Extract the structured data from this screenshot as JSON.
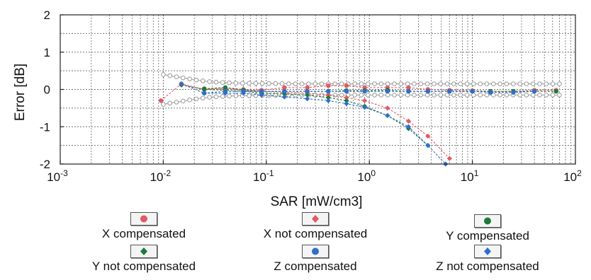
{
  "chart_data": {
    "type": "line",
    "xlabel": "SAR [mW/cm3]",
    "ylabel": "Error [dB]",
    "xscale": "log",
    "xlim": [
      0.001,
      100
    ],
    "ylim": [
      -2,
      2
    ],
    "x_ticks": [
      {
        "base": "10",
        "exp": "-3"
      },
      {
        "base": "10",
        "exp": "-2"
      },
      {
        "base": "10",
        "exp": "-1"
      },
      {
        "base": "10",
        "exp": "0"
      },
      {
        "base": "10",
        "exp": "1"
      },
      {
        "base": "10",
        "exp": "2"
      }
    ],
    "y_ticks": [
      "2",
      "1",
      "0",
      "-1",
      "-2"
    ],
    "grid": true,
    "uncertainty_band": {
      "x": [
        0.01,
        0.012,
        0.015,
        0.02,
        0.03,
        0.05,
        0.1,
        0.2,
        0.5,
        1,
        2,
        5,
        10,
        20,
        50,
        70
      ],
      "upper": [
        0.4,
        0.36,
        0.32,
        0.26,
        0.2,
        0.17,
        0.16,
        0.15,
        0.15,
        0.15,
        0.15,
        0.15,
        0.15,
        0.15,
        0.15,
        0.15
      ],
      "lower": [
        -0.4,
        -0.36,
        -0.32,
        -0.26,
        -0.2,
        -0.17,
        -0.16,
        -0.15,
        -0.15,
        -0.15,
        -0.15,
        -0.15,
        -0.15,
        -0.15,
        -0.15,
        -0.15
      ]
    },
    "series": [
      {
        "name": "X compensated",
        "color": "#e05a64",
        "marker": "circle",
        "x": [
          0.0095,
          0.015,
          0.025,
          0.04,
          0.06,
          0.09,
          0.15,
          0.25,
          0.4,
          0.6,
          0.9,
          1.5,
          2.4,
          3.7,
          6,
          10,
          15,
          25,
          40,
          65
        ],
        "y": [
          -0.3,
          0.15,
          0.0,
          0.05,
          0.0,
          -0.02,
          0.05,
          0.05,
          0.1,
          0.1,
          0.05,
          0.05,
          0.05,
          0.0,
          -0.02,
          -0.03,
          -0.05,
          -0.05,
          -0.02,
          -0.02
        ]
      },
      {
        "name": "X not compensated",
        "color": "#e05a64",
        "marker": "diamond",
        "x": [
          0.015,
          0.025,
          0.04,
          0.06,
          0.09,
          0.15,
          0.25,
          0.4,
          0.6,
          0.9,
          1.5,
          2.4,
          3.7,
          6
        ],
        "y": [
          0.12,
          0.0,
          0.02,
          -0.02,
          -0.05,
          -0.08,
          -0.1,
          -0.15,
          -0.22,
          -0.3,
          -0.5,
          -0.85,
          -1.25,
          -1.85
        ]
      },
      {
        "name": "Y compensated",
        "color": "#1f7a3a",
        "marker": "circle",
        "x": [
          0.025,
          0.04,
          0.06,
          0.09,
          0.15,
          0.25,
          0.4,
          0.6,
          0.9,
          1.5,
          2.4,
          3.7,
          6,
          10,
          15,
          25,
          40,
          65
        ],
        "y": [
          0.02,
          0.05,
          -0.02,
          -0.05,
          -0.05,
          -0.05,
          -0.05,
          -0.03,
          -0.03,
          -0.02,
          -0.05,
          -0.05,
          -0.05,
          -0.05,
          -0.05,
          -0.05,
          -0.05,
          -0.05
        ]
      },
      {
        "name": "Y not compensated",
        "color": "#1f7a3a",
        "marker": "diamond",
        "x": [
          0.015,
          0.025,
          0.04,
          0.06,
          0.09,
          0.15,
          0.25,
          0.4,
          0.6,
          0.9,
          1.5,
          2.4,
          3.7
        ],
        "y": [
          0.12,
          0.0,
          -0.02,
          -0.05,
          -0.1,
          -0.12,
          -0.15,
          -0.22,
          -0.3,
          -0.45,
          -0.7,
          -1.05,
          -1.5
        ]
      },
      {
        "name": "Z compensated",
        "color": "#2f6fc9",
        "marker": "circle",
        "x": [
          0.025,
          0.04,
          0.06,
          0.09,
          0.15,
          0.25,
          0.4,
          0.6,
          0.9,
          1.5,
          2.4,
          3.7,
          6,
          10,
          15,
          25,
          40
        ],
        "y": [
          -0.1,
          -0.05,
          -0.05,
          -0.05,
          -0.05,
          -0.05,
          -0.05,
          -0.05,
          -0.05,
          -0.05,
          -0.05,
          -0.05,
          -0.05,
          -0.05,
          -0.08,
          -0.08,
          -0.05
        ]
      },
      {
        "name": "Z not compensated",
        "color": "#2f6fc9",
        "marker": "diamond",
        "x": [
          0.015,
          0.025,
          0.04,
          0.06,
          0.09,
          0.15,
          0.25,
          0.4,
          0.6,
          0.9,
          1.5,
          2.4,
          3.7,
          5.5
        ],
        "y": [
          0.15,
          -0.1,
          -0.1,
          -0.1,
          -0.15,
          -0.2,
          -0.25,
          -0.3,
          -0.38,
          -0.48,
          -0.7,
          -1.0,
          -1.5,
          -2.0
        ]
      }
    ]
  },
  "legend": {
    "items": [
      {
        "label": "X compensated",
        "color": "#e05a64",
        "marker": "circle"
      },
      {
        "label": "X not compensated",
        "color": "#e05a64",
        "marker": "diamond"
      },
      {
        "label": "Y compensated",
        "color": "#1f7a3a",
        "marker": "circle"
      },
      {
        "label": "Y not compensated",
        "color": "#1f7a3a",
        "marker": "diamond"
      },
      {
        "label": "Z compensated",
        "color": "#2f6fc9",
        "marker": "circle"
      },
      {
        "label": "Z not compensated",
        "color": "#2f6fc9",
        "marker": "diamond"
      }
    ]
  }
}
